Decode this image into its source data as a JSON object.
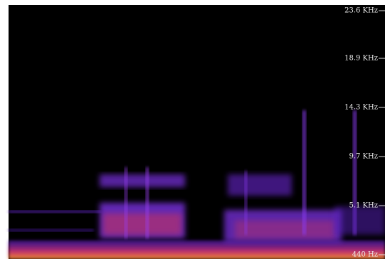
{
  "frequency_axis": {
    "labels": [
      "23.6  KHz",
      "18.9  KHz",
      "14.3  KHz",
      "9.7  KHz",
      "5.1  KHz",
      "440  Hz"
    ]
  }
}
